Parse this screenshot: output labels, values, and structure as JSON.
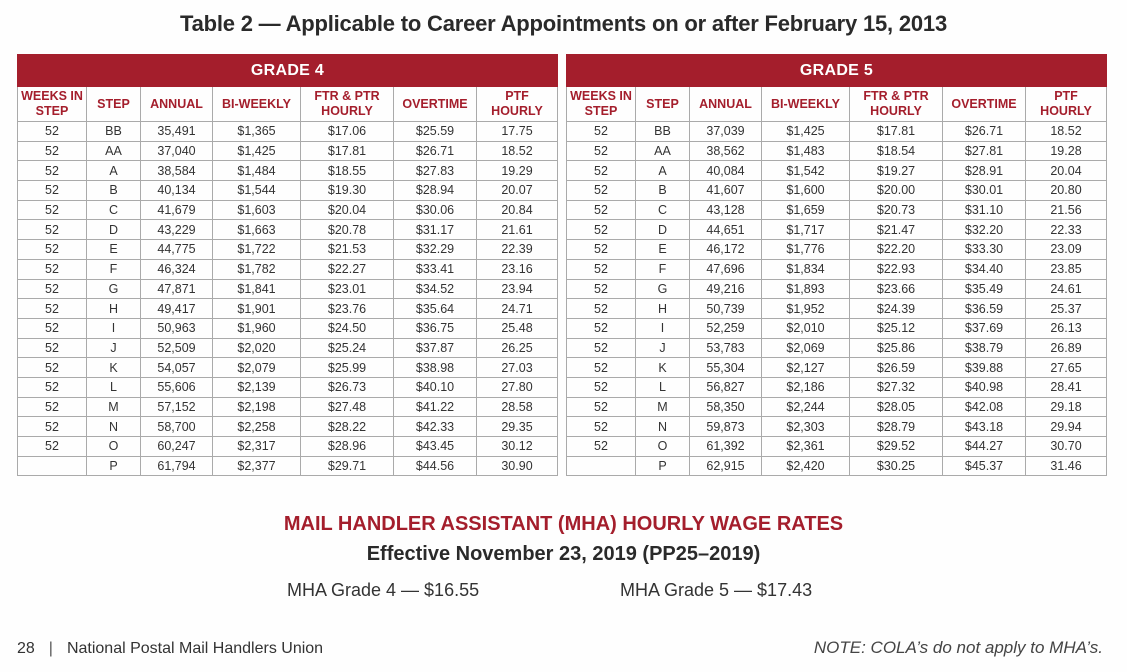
{
  "title": "Table 2 — Applicable to Career Appointments on or after February 15, 2013",
  "columns": [
    "WEEKS IN STEP",
    "STEP",
    "ANNUAL",
    "BI-WEEKLY",
    "FTR & PTR HOURLY",
    "OVERTIME",
    "PTF HOURLY"
  ],
  "colors": {
    "accent": "#a41e2c",
    "border": "#aaaaaa"
  },
  "grades": [
    {
      "name": "GRADE 4",
      "rows": [
        [
          "52",
          "BB",
          "35,491",
          "$1,365",
          "$17.06",
          "$25.59",
          "17.75"
        ],
        [
          "52",
          "AA",
          "37,040",
          "$1,425",
          "$17.81",
          "$26.71",
          "18.52"
        ],
        [
          "52",
          "A",
          "38,584",
          "$1,484",
          "$18.55",
          "$27.83",
          "19.29"
        ],
        [
          "52",
          "B",
          "40,134",
          "$1,544",
          "$19.30",
          "$28.94",
          "20.07"
        ],
        [
          "52",
          "C",
          "41,679",
          "$1,603",
          "$20.04",
          "$30.06",
          "20.84"
        ],
        [
          "52",
          "D",
          "43,229",
          "$1,663",
          "$20.78",
          "$31.17",
          "21.61"
        ],
        [
          "52",
          "E",
          "44,775",
          "$1,722",
          "$21.53",
          "$32.29",
          "22.39"
        ],
        [
          "52",
          "F",
          "46,324",
          "$1,782",
          "$22.27",
          "$33.41",
          "23.16"
        ],
        [
          "52",
          "G",
          "47,871",
          "$1,841",
          "$23.01",
          "$34.52",
          "23.94"
        ],
        [
          "52",
          "H",
          "49,417",
          "$1,901",
          "$23.76",
          "$35.64",
          "24.71"
        ],
        [
          "52",
          "I",
          "50,963",
          "$1,960",
          "$24.50",
          "$36.75",
          "25.48"
        ],
        [
          "52",
          "J",
          "52,509",
          "$2,020",
          "$25.24",
          "$37.87",
          "26.25"
        ],
        [
          "52",
          "K",
          "54,057",
          "$2,079",
          "$25.99",
          "$38.98",
          "27.03"
        ],
        [
          "52",
          "L",
          "55,606",
          "$2,139",
          "$26.73",
          "$40.10",
          "27.80"
        ],
        [
          "52",
          "M",
          "57,152",
          "$2,198",
          "$27.48",
          "$41.22",
          "28.58"
        ],
        [
          "52",
          "N",
          "58,700",
          "$2,258",
          "$28.22",
          "$42.33",
          "29.35"
        ],
        [
          "52",
          "O",
          "60,247",
          "$2,317",
          "$28.96",
          "$43.45",
          "30.12"
        ],
        [
          "",
          "P",
          "61,794",
          "$2,377",
          "$29.71",
          "$44.56",
          "30.90"
        ]
      ]
    },
    {
      "name": "GRADE 5",
      "rows": [
        [
          "52",
          "BB",
          "37,039",
          "$1,425",
          "$17.81",
          "$26.71",
          "18.52"
        ],
        [
          "52",
          "AA",
          "38,562",
          "$1,483",
          "$18.54",
          "$27.81",
          "19.28"
        ],
        [
          "52",
          "A",
          "40,084",
          "$1,542",
          "$19.27",
          "$28.91",
          "20.04"
        ],
        [
          "52",
          "B",
          "41,607",
          "$1,600",
          "$20.00",
          "$30.01",
          "20.80"
        ],
        [
          "52",
          "C",
          "43,128",
          "$1,659",
          "$20.73",
          "$31.10",
          "21.56"
        ],
        [
          "52",
          "D",
          "44,651",
          "$1,717",
          "$21.47",
          "$32.20",
          "22.33"
        ],
        [
          "52",
          "E",
          "46,172",
          "$1,776",
          "$22.20",
          "$33.30",
          "23.09"
        ],
        [
          "52",
          "F",
          "47,696",
          "$1,834",
          "$22.93",
          "$34.40",
          "23.85"
        ],
        [
          "52",
          "G",
          "49,216",
          "$1,893",
          "$23.66",
          "$35.49",
          "24.61"
        ],
        [
          "52",
          "H",
          "50,739",
          "$1,952",
          "$24.39",
          "$36.59",
          "25.37"
        ],
        [
          "52",
          "I",
          "52,259",
          "$2,010",
          "$25.12",
          "$37.69",
          "26.13"
        ],
        [
          "52",
          "J",
          "53,783",
          "$2,069",
          "$25.86",
          "$38.79",
          "26.89"
        ],
        [
          "52",
          "K",
          "55,304",
          "$2,127",
          "$26.59",
          "$39.88",
          "27.65"
        ],
        [
          "52",
          "L",
          "56,827",
          "$2,186",
          "$27.32",
          "$40.98",
          "28.41"
        ],
        [
          "52",
          "M",
          "58,350",
          "$2,244",
          "$28.05",
          "$42.08",
          "29.18"
        ],
        [
          "52",
          "N",
          "59,873",
          "$2,303",
          "$28.79",
          "$43.18",
          "29.94"
        ],
        [
          "52",
          "O",
          "61,392",
          "$2,361",
          "$29.52",
          "$44.27",
          "30.70"
        ],
        [
          "",
          "P",
          "62,915",
          "$2,420",
          "$30.25",
          "$45.37",
          "31.46"
        ]
      ]
    }
  ],
  "mha": {
    "title": "MAIL HANDLER ASSISTANT (MHA) HOURLY WAGE RATES",
    "effective": "Effective November 23, 2019 (PP25–2019)",
    "grade4": "MHA Grade 4 — $16.55",
    "grade5": "MHA Grade 5 — $17.43"
  },
  "footer": {
    "page_number": "28",
    "separator": "|",
    "publisher": "National Postal Mail Handlers Union",
    "note": "NOTE: COLA’s do not apply to MHA’s."
  }
}
